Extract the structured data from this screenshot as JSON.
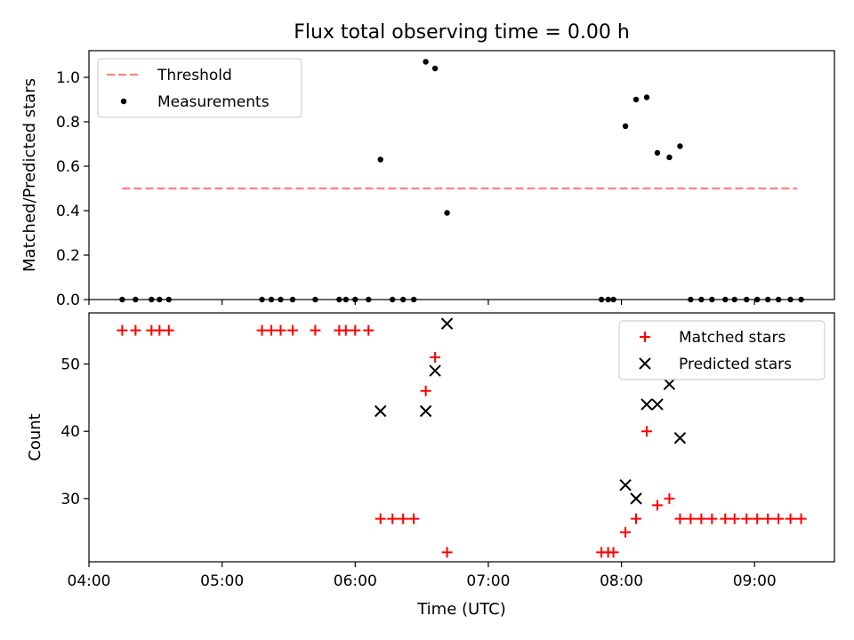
{
  "chart_data": [
    {
      "type": "scatter",
      "title": "Flux total observing time = 0.00 h",
      "ylabel": "Matched/Predicted stars",
      "xlim": [
        4.0,
        9.6
      ],
      "ylim": [
        0,
        1.12
      ],
      "yticks": [
        "0.0",
        "0.2",
        "0.4",
        "0.6",
        "0.8",
        "1.0"
      ],
      "ytick_values": [
        0,
        0.2,
        0.4,
        0.6,
        0.8,
        1.0
      ],
      "legend": "top-left",
      "series": [
        {
          "name": "Threshold",
          "kind": "dashed-line",
          "color": "#ff8080",
          "x": [
            4.25,
            9.32
          ],
          "y": [
            0.5,
            0.5
          ]
        },
        {
          "name": "Measurements",
          "kind": "dot",
          "color": "#000000",
          "x": [
            4.25,
            4.35,
            4.47,
            4.53,
            4.6,
            5.3,
            5.37,
            5.44,
            5.53,
            5.7,
            5.88,
            5.93,
            6.0,
            6.1,
            6.19,
            6.28,
            6.36,
            6.44,
            6.53,
            6.6,
            6.69,
            7.85,
            7.9,
            7.94,
            8.03,
            8.11,
            8.19,
            8.27,
            8.36,
            8.44,
            8.52,
            8.6,
            8.68,
            8.78,
            8.85,
            8.94,
            9.02,
            9.1,
            9.18,
            9.27,
            9.35
          ],
          "y": [
            0,
            0,
            0,
            0,
            0,
            0,
            0,
            0,
            0,
            0,
            0,
            0,
            0,
            0,
            0.63,
            0,
            0,
            0,
            1.07,
            1.04,
            0.39,
            0,
            0,
            0,
            0.78,
            0.9,
            0.91,
            0.66,
            0.64,
            0.69,
            0,
            0,
            0,
            0,
            0,
            0,
            0,
            0,
            0,
            0,
            0
          ]
        }
      ]
    },
    {
      "type": "scatter",
      "xlabel": "Time (UTC)",
      "ylabel": "Count",
      "xlim": [
        4.0,
        9.6
      ],
      "ylim": [
        20.6,
        57.6
      ],
      "xticks": [
        "04:00",
        "05:00",
        "06:00",
        "07:00",
        "08:00",
        "09:00"
      ],
      "xtick_values": [
        4,
        5,
        6,
        7,
        8,
        9
      ],
      "yticks": [
        "30",
        "40",
        "50"
      ],
      "ytick_values": [
        30,
        40,
        50
      ],
      "legend": "top-right",
      "series": [
        {
          "name": "Matched stars",
          "kind": "plus",
          "color": "#ff0000",
          "x": [
            4.25,
            4.35,
            4.47,
            4.53,
            4.6,
            5.3,
            5.37,
            5.44,
            5.53,
            5.7,
            5.88,
            5.93,
            6.0,
            6.1,
            6.19,
            6.28,
            6.36,
            6.44,
            6.53,
            6.6,
            6.69,
            7.85,
            7.9,
            7.94,
            8.03,
            8.11,
            8.19,
            8.27,
            8.36,
            8.44,
            8.52,
            8.6,
            8.68,
            8.78,
            8.85,
            8.94,
            9.02,
            9.1,
            9.18,
            9.27,
            9.35
          ],
          "y": [
            55,
            55,
            55,
            55,
            55,
            55,
            55,
            55,
            55,
            55,
            55,
            55,
            55,
            55,
            27,
            27,
            27,
            27,
            46,
            51,
            22,
            22,
            22,
            22,
            25,
            27,
            40,
            29,
            30,
            27,
            27,
            27,
            27,
            27,
            27,
            27,
            27,
            27,
            27,
            27,
            27
          ]
        },
        {
          "name": "Predicted stars",
          "kind": "x",
          "color": "#000000",
          "x": [
            6.19,
            6.53,
            6.6,
            6.69,
            8.03,
            8.11,
            8.19,
            8.27,
            8.36,
            8.44
          ],
          "y": [
            43,
            43,
            49,
            56,
            32,
            30,
            44,
            44,
            47,
            39
          ]
        }
      ]
    }
  ]
}
